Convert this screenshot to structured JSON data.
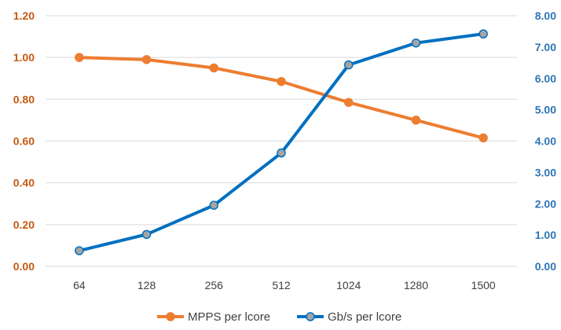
{
  "chart_data": {
    "type": "line",
    "categories": [
      "64",
      "128",
      "256",
      "512",
      "1024",
      "1280",
      "1500"
    ],
    "series": [
      {
        "name": "MPPS per lcore",
        "axis": "left",
        "color": "#ED7D31",
        "values": [
          1.0,
          0.99,
          0.95,
          0.885,
          0.785,
          0.7,
          0.615
        ]
      },
      {
        "name": "Gb/s per lcore",
        "axis": "right",
        "color": "#0070C0",
        "marker_fill": "#A5A5A5",
        "values": [
          0.5,
          1.02,
          1.95,
          3.62,
          6.43,
          7.13,
          7.42
        ]
      }
    ],
    "y_left": {
      "range": [
        0,
        1.2
      ],
      "ticks": [
        "0.00",
        "0.20",
        "0.40",
        "0.60",
        "0.80",
        "1.00",
        "1.20"
      ],
      "color": "#C55A11"
    },
    "y_right": {
      "range": [
        0,
        8
      ],
      "ticks": [
        "0.00",
        "1.00",
        "2.00",
        "3.00",
        "4.00",
        "5.00",
        "6.00",
        "7.00",
        "8.00"
      ],
      "color": "#2E75B6"
    },
    "grid": true,
    "legend": "bottom"
  }
}
